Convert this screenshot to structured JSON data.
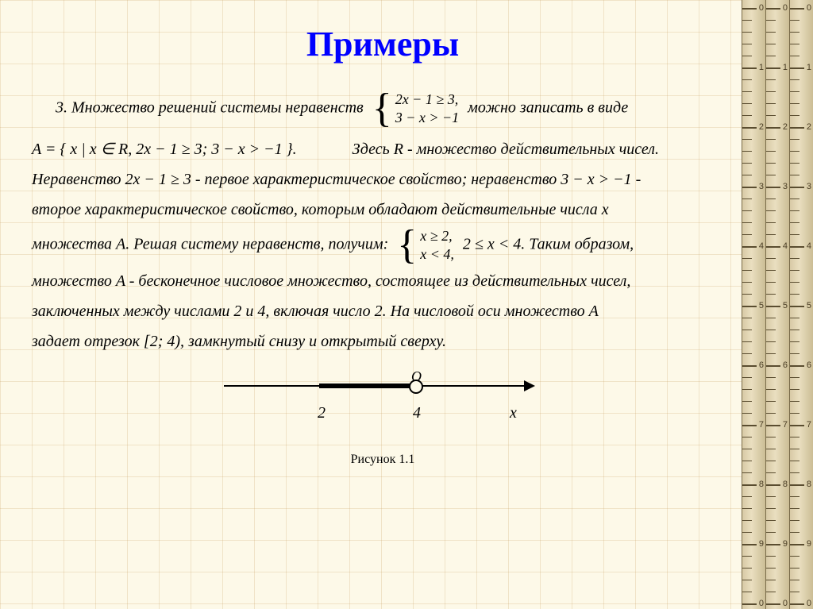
{
  "title": "Примеры",
  "problem": {
    "intro_prefix": "3.  Множество решений системы неравенств",
    "system1_row1": "2x − 1 ≥ 3,",
    "system1_row2": "3 − x > −1",
    "intro_suffix": "можно записать в виде",
    "set_def": "A = { x | x ∈ R,  2x − 1 ≥ 3;  3 − x > −1 }.",
    "r_note": "Здесь  R  -  множество действительных чисел.",
    "line3": "Неравенство 2x − 1 ≥ 3  - первое характеристическое свойство; неравенство  3 − x > −1  -",
    "line4": "второе характеристическое свойство, которым обладают действительные числа  x",
    "line5_prefix": "множества  A.  Решая систему неравенств, получим:",
    "system2_row1": "x ≥ 2,",
    "system2_row2": "x < 4,",
    "line5_mid": "2 ≤ x < 4.  Таким образом,",
    "line6": "множество  A  - бесконечное числовое множество, состоящее из действительных чисел,",
    "line7": "заключенных между числами 2 и 4, включая число 2. На числовой оси множество  A",
    "line8": "задает отрезок [2; 4), замкнутый снизу и открытый сверху."
  },
  "number_line": {
    "point1_label": "2",
    "point2_label": "4",
    "axis_label": "x",
    "open_label": "О",
    "caption": "Рисунок 1.1"
  },
  "colors": {
    "title": "#0000ff",
    "background": "#fdf9e8",
    "text": "#000000"
  }
}
